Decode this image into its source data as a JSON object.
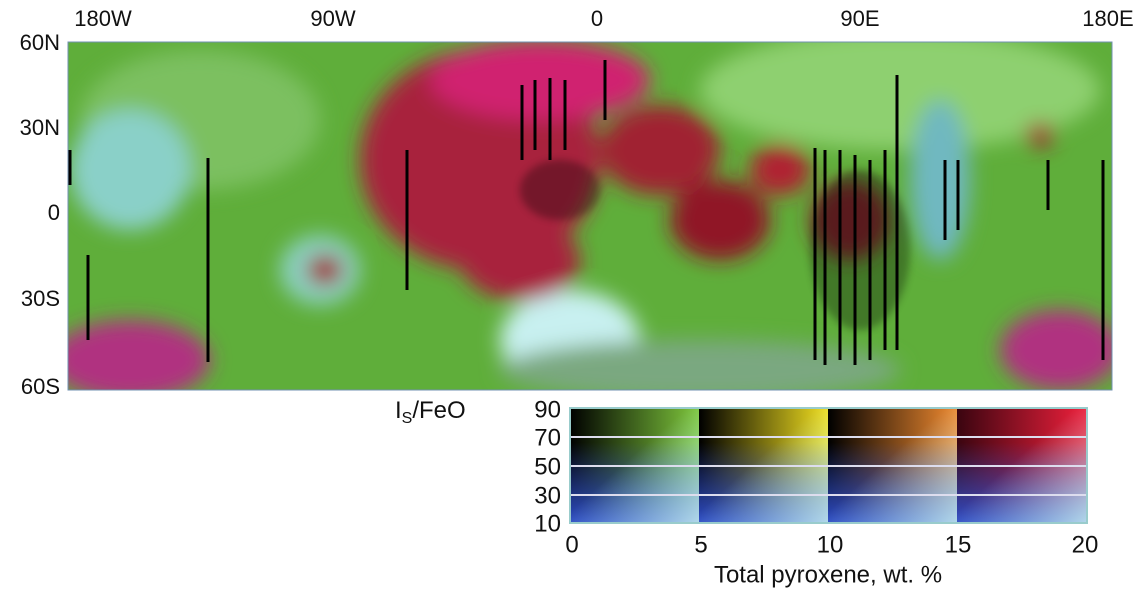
{
  "map": {
    "lon_labels": [
      "180W",
      "90W",
      "0",
      "90E",
      "180E"
    ],
    "lat_labels": [
      "60N",
      "30N",
      "0",
      "30S",
      "60S"
    ]
  },
  "legend": {
    "title": {
      "main": "I",
      "sub": "S",
      "rest": "/FeO"
    },
    "y_labels": [
      "90",
      "70",
      "50",
      "30",
      "10"
    ],
    "x_labels": [
      "0",
      "5",
      "10",
      "15",
      "20"
    ],
    "x_title": "Total pyroxene, wt. %"
  }
}
